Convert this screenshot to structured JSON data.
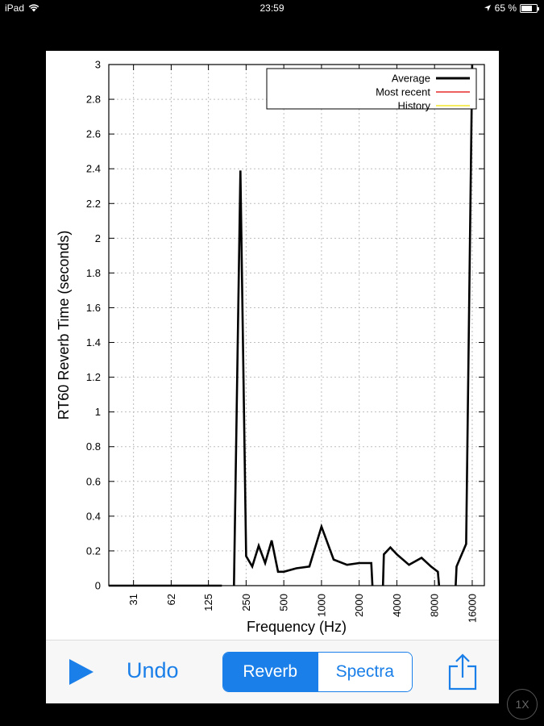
{
  "status_bar": {
    "device": "iPad",
    "time": "23:59",
    "battery": "65 %",
    "battery_level": 0.65
  },
  "chart_data": {
    "type": "line",
    "xlabel": "Frequency (Hz)",
    "ylabel": "RT60 Reverb Time (seconds)",
    "ylim": [
      0,
      3
    ],
    "xlim": [
      20,
      20000
    ],
    "x_scale": "log",
    "y_ticks": [
      "0",
      "0.2",
      "0.4",
      "0.6",
      "0.8",
      "1",
      "1.2",
      "1.4",
      "1.6",
      "1.8",
      "2",
      "2.2",
      "2.4",
      "2.6",
      "2.8",
      "3"
    ],
    "x_ticks": [
      {
        "label": "31",
        "value": 31.5
      },
      {
        "label": "62",
        "value": 63
      },
      {
        "label": "125",
        "value": 125
      },
      {
        "label": "250",
        "value": 250
      },
      {
        "label": "500",
        "value": 500
      },
      {
        "label": "1000",
        "value": 1000
      },
      {
        "label": "2000",
        "value": 2000
      },
      {
        "label": "4000",
        "value": 4000
      },
      {
        "label": "8000",
        "value": 8000
      },
      {
        "label": "16000",
        "value": 16000
      }
    ],
    "grid": true,
    "legend_position": "top-right",
    "legend": [
      {
        "name": "Average",
        "color": "#000000"
      },
      {
        "name": "Most recent",
        "color": "#e00000"
      },
      {
        "name": "History",
        "color": "#f0e000"
      }
    ],
    "series": [
      {
        "name": "Average",
        "color": "#000000",
        "segments": [
          [
            [
              20,
              0
            ],
            [
              160,
              0
            ]
          ],
          [
            [
              200,
              0
            ],
            [
              225,
              2.39
            ],
            [
              250,
              0.17
            ],
            [
              280,
              0.11
            ],
            [
              315,
              0.23
            ],
            [
              355,
              0.13
            ],
            [
              400,
              0.26
            ],
            [
              450,
              0.08
            ],
            [
              500,
              0.08
            ],
            [
              630,
              0.1
            ],
            [
              800,
              0.11
            ],
            [
              1000,
              0.34
            ],
            [
              1250,
              0.15
            ],
            [
              1600,
              0.12
            ],
            [
              2000,
              0.13
            ],
            [
              2500,
              0.13
            ],
            [
              2550,
              0
            ]
          ],
          [
            [
              3100,
              0
            ],
            [
              3150,
              0.18
            ],
            [
              3550,
              0.22
            ],
            [
              4000,
              0.18
            ],
            [
              5000,
              0.12
            ],
            [
              6300,
              0.16
            ],
            [
              7500,
              0.11
            ],
            [
              8500,
              0.08
            ],
            [
              8700,
              0
            ]
          ],
          [
            [
              11800,
              0
            ],
            [
              12000,
              0.11
            ],
            [
              14300,
              0.24
            ],
            [
              16000,
              3.0
            ]
          ]
        ]
      }
    ]
  },
  "toolbar": {
    "undo": "Undo",
    "tabs": [
      "Reverb",
      "Spectra"
    ],
    "active_tab": "Reverb"
  },
  "zoom_label": "1X"
}
